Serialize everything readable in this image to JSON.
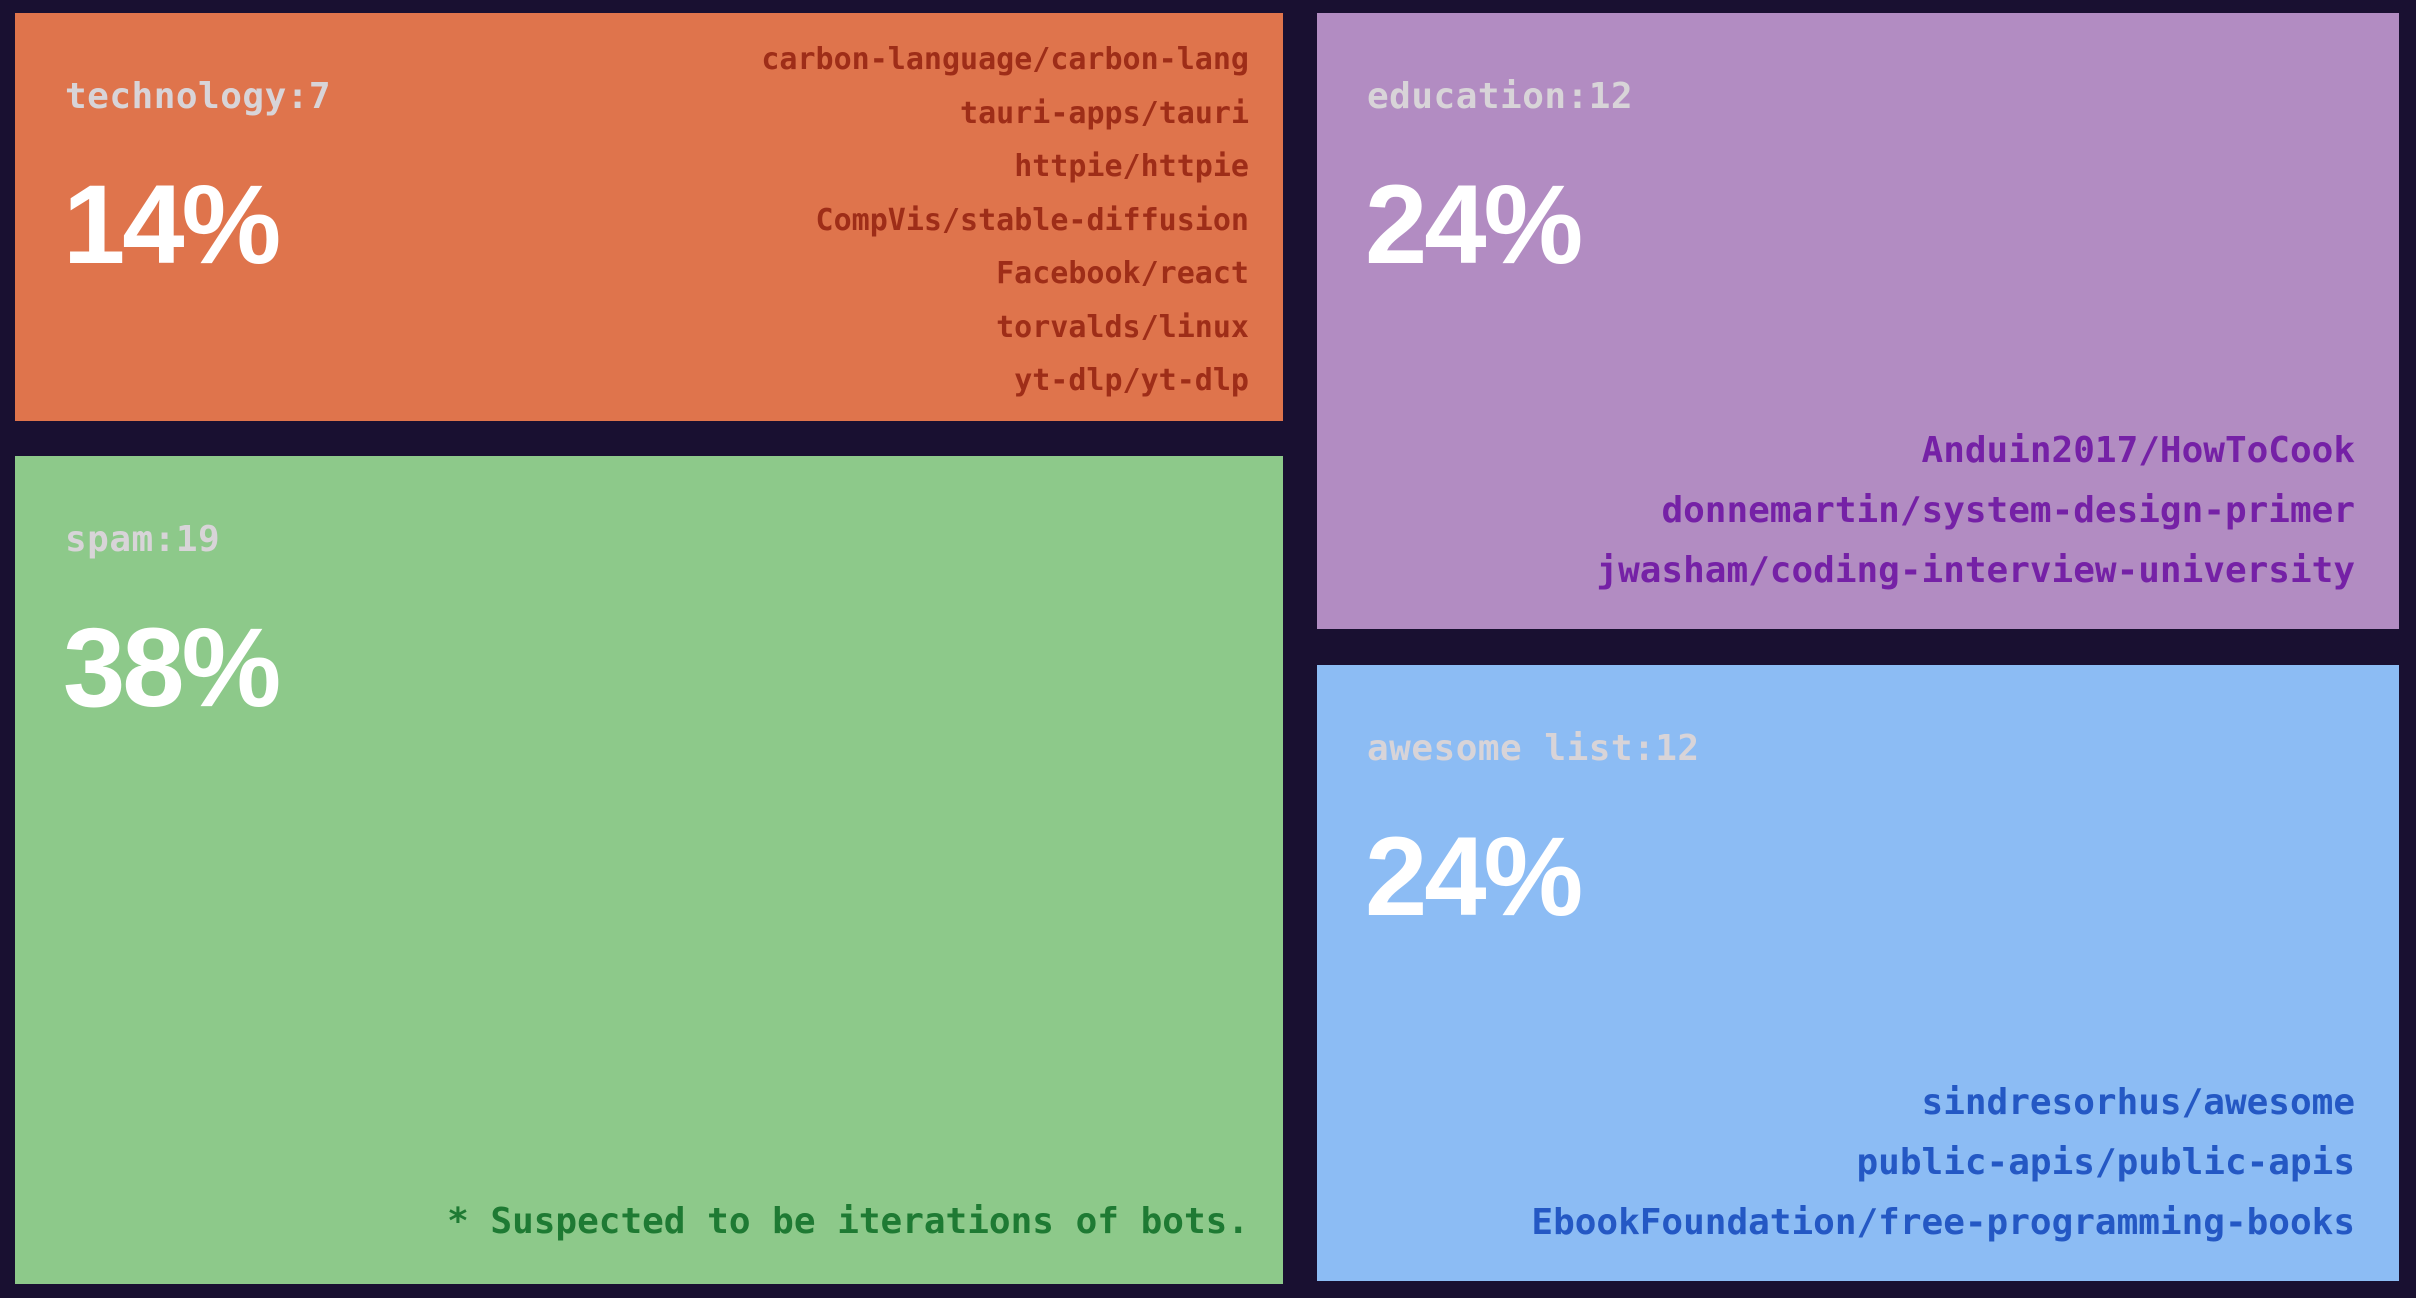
{
  "colors": {
    "background": "#191031",
    "category_label": "#d8d4d8",
    "percent_text": "#ffffff"
  },
  "chart_data": {
    "type": "treemap",
    "title": "",
    "legend": "none",
    "categories": [
      "technology",
      "spam",
      "education",
      "awesome list"
    ],
    "counts": [
      7,
      19,
      12,
      12
    ],
    "percents": [
      14,
      38,
      24,
      24
    ],
    "annotations": [
      "* Suspected to be iterations of bots."
    ],
    "cells": [
      {
        "name": "technology",
        "label": "technology:7",
        "count": 7,
        "percent_label": "14%",
        "percent": 14,
        "color": "#df744c",
        "repo_color": "#9e2d18",
        "repos": [
          "carbon-language/carbon-lang",
          "tauri-apps/tauri",
          "httpie/httpie",
          "CompVis/stable-diffusion",
          "Facebook/react",
          "torvalds/linux",
          "yt-dlp/yt-dlp"
        ]
      },
      {
        "name": "spam",
        "label": "spam:19",
        "count": 19,
        "percent_label": "38%",
        "percent": 38,
        "color": "#8dc98a",
        "note": "* Suspected to be iterations of bots.",
        "note_color": "#1e7a33",
        "repos": []
      },
      {
        "name": "education",
        "label": "education:12",
        "count": 12,
        "percent_label": "24%",
        "percent": 24,
        "color": "#b28cc2",
        "repo_color": "#7521a6",
        "repos": [
          "Anduin2017/HowToCook",
          "donnemartin/system-design-primer",
          "jwasham/coding-interview-university"
        ]
      },
      {
        "name": "awesome list",
        "label": "awesome list:12",
        "count": 12,
        "percent_label": "24%",
        "percent": 24,
        "color": "#8cbcf4",
        "repo_color": "#2458c4",
        "repos": [
          "sindresorhus/awesome",
          "public-apis/public-apis",
          "EbookFoundation/free-programming-books"
        ]
      }
    ]
  }
}
